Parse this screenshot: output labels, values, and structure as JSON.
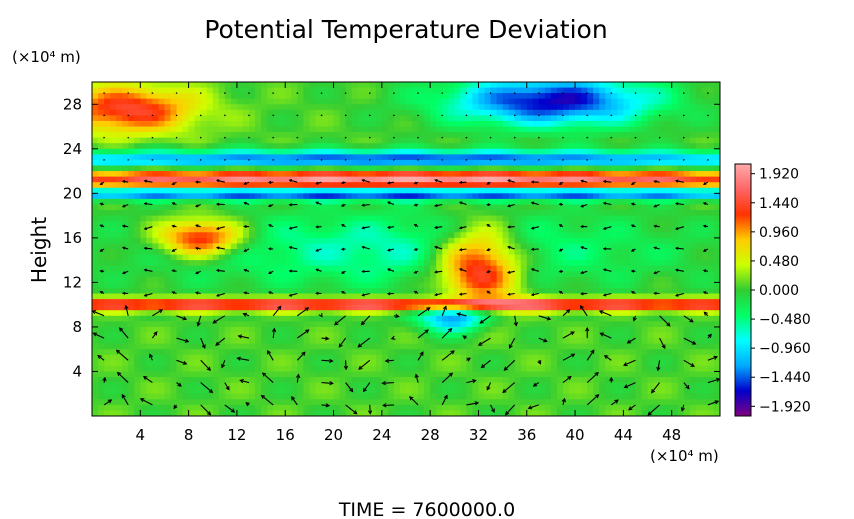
{
  "chart_data": {
    "type": "heatmap",
    "title": "Potential Temperature Deviation",
    "ylabel": "Height",
    "x_unit": "(×10⁴ m)",
    "y_unit": "(×10⁴ m)",
    "footer": "TIME = 7600000.0",
    "xlim": [
      0,
      52
    ],
    "ylim": [
      0,
      30
    ],
    "x_ticks": [
      4,
      8,
      12,
      16,
      20,
      24,
      28,
      32,
      36,
      40,
      44,
      48
    ],
    "y_ticks": [
      4,
      8,
      12,
      16,
      20,
      24,
      28
    ],
    "colorbar": {
      "range": [
        -2.08,
        2.08
      ],
      "tick_labels": [
        "1.920",
        "1.440",
        "0.960",
        "0.480",
        "0.000",
        "−0.480",
        "−0.960",
        "−1.440",
        "−1.920"
      ],
      "tick_values": [
        1.92,
        1.44,
        0.96,
        0.48,
        0.0,
        -0.48,
        -0.96,
        -1.44,
        -1.92
      ],
      "colors": [
        "#800080",
        "#0000cc",
        "#00aaff",
        "#00ffff",
        "#00ff66",
        "#33cc33",
        "#ccff00",
        "#ffcc00",
        "#ff3300",
        "#ff6666",
        "#ffaaaa"
      ]
    },
    "features": [
      {
        "x": 3,
        "y": 27.5,
        "sigma_x": 4,
        "sigma_y": 1.5,
        "value": 1.4
      },
      {
        "x": 38,
        "y": 28.3,
        "sigma_x": 6,
        "sigma_y": 1.6,
        "value": -1.8
      },
      {
        "x": 26,
        "y": 21.2,
        "sigma_x": 30,
        "sigma_y": 0.7,
        "value": 2.0
      },
      {
        "x": 26,
        "y": 20.0,
        "sigma_x": 40,
        "sigma_y": 0.4,
        "value": -2.0
      },
      {
        "x": 26,
        "y": 23.0,
        "sigma_x": 30,
        "sigma_y": 0.6,
        "value": -1.6
      },
      {
        "x": 9,
        "y": 16,
        "sigma_x": 2.5,
        "sigma_y": 1.2,
        "value": 1.6
      },
      {
        "x": 32,
        "y": 13.5,
        "sigma_x": 2.5,
        "sigma_y": 2.5,
        "value": 1.8
      },
      {
        "x": 26,
        "y": 10,
        "sigma_x": 40,
        "sigma_y": 0.4,
        "value": 1.8
      },
      {
        "x": 30,
        "y": 9,
        "sigma_x": 2,
        "sigma_y": 1,
        "value": -1.6
      },
      {
        "x": 26,
        "y": 15,
        "sigma_x": 15,
        "sigma_y": 2.5,
        "value": -0.7
      }
    ]
  }
}
